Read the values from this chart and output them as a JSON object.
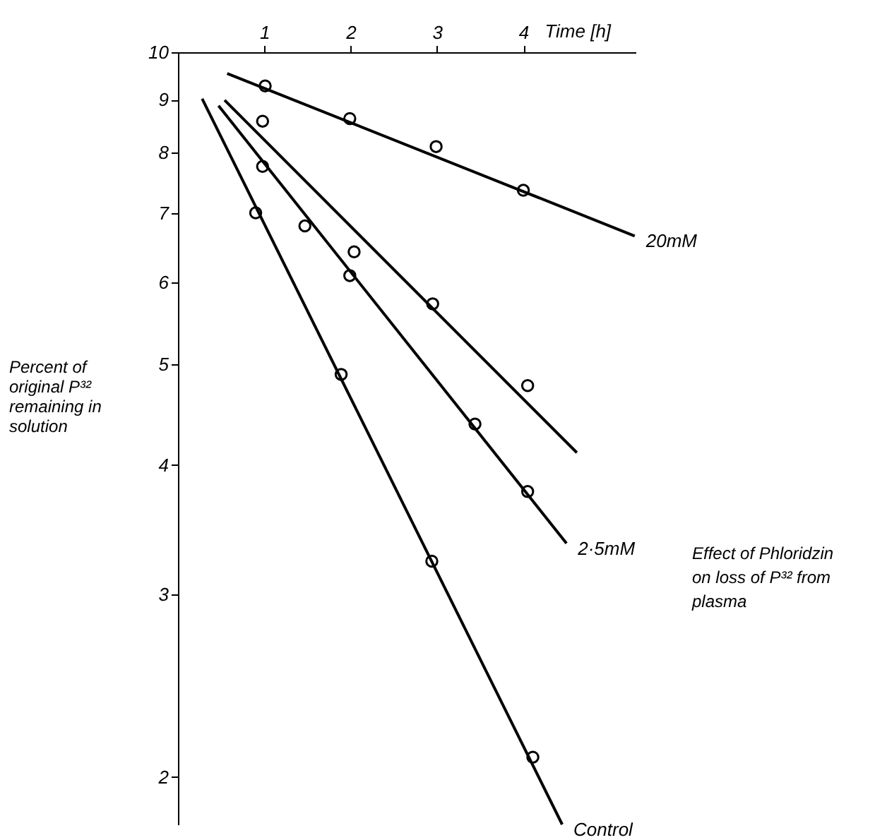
{
  "chart_data": {
    "type": "scatter",
    "xlabel": "Time [h]",
    "ylabel": "Percent of original P³² remaining in solution",
    "annotations": [
      "Effect of Phloridzin on loss of P³² from plasma"
    ],
    "xlim": [
      0,
      5.3
    ],
    "xticks": [
      1,
      2,
      3,
      4
    ],
    "ylim": [
      1.8,
      10
    ],
    "yticks": [
      2,
      3,
      4,
      5,
      6,
      7,
      8,
      9,
      10
    ],
    "log": "y",
    "grid": false,
    "marker": "circle",
    "series": [
      {
        "color": "#000000",
        "x": [
          1.01,
          1.99,
          2.99,
          4.0
        ],
        "values": [
          9.28,
          8.63,
          8.11,
          7.36
        ]
      },
      {
        "color": "#000000",
        "x": [
          0.98,
          2.04,
          2.95,
          4.05
        ],
        "values": [
          8.58,
          6.42,
          5.72,
          4.77
        ]
      },
      {
        "color": "#000000",
        "x": [
          0.98,
          1.47,
          1.99,
          3.44,
          4.05
        ],
        "values": [
          7.76,
          6.8,
          6.09,
          4.38,
          3.77
        ]
      },
      {
        "color": "#000000",
        "x": [
          0.9,
          1.89,
          2.94,
          4.11
        ],
        "values": [
          7.0,
          4.89,
          3.23,
          2.09
        ]
      },
      {
        "type": "line",
        "marker": "none",
        "name": "20mM",
        "color": "#000000",
        "x": [
          0.57,
          5.29
        ],
        "values": [
          9.54,
          6.65
        ]
      },
      {
        "type": "line",
        "marker": "none",
        "color": "#000000",
        "x": [
          0.54,
          4.62
        ],
        "values": [
          8.99,
          4.11
        ]
      },
      {
        "type": "line",
        "marker": "none",
        "name": "2·5mM",
        "color": "#000000",
        "x": [
          0.47,
          4.5
        ],
        "values": [
          8.88,
          3.36
        ]
      },
      {
        "type": "line",
        "marker": "none",
        "name": "Control",
        "color": "#000000",
        "x": [
          0.28,
          4.45
        ],
        "values": [
          9.02,
          1.8
        ]
      }
    ]
  }
}
